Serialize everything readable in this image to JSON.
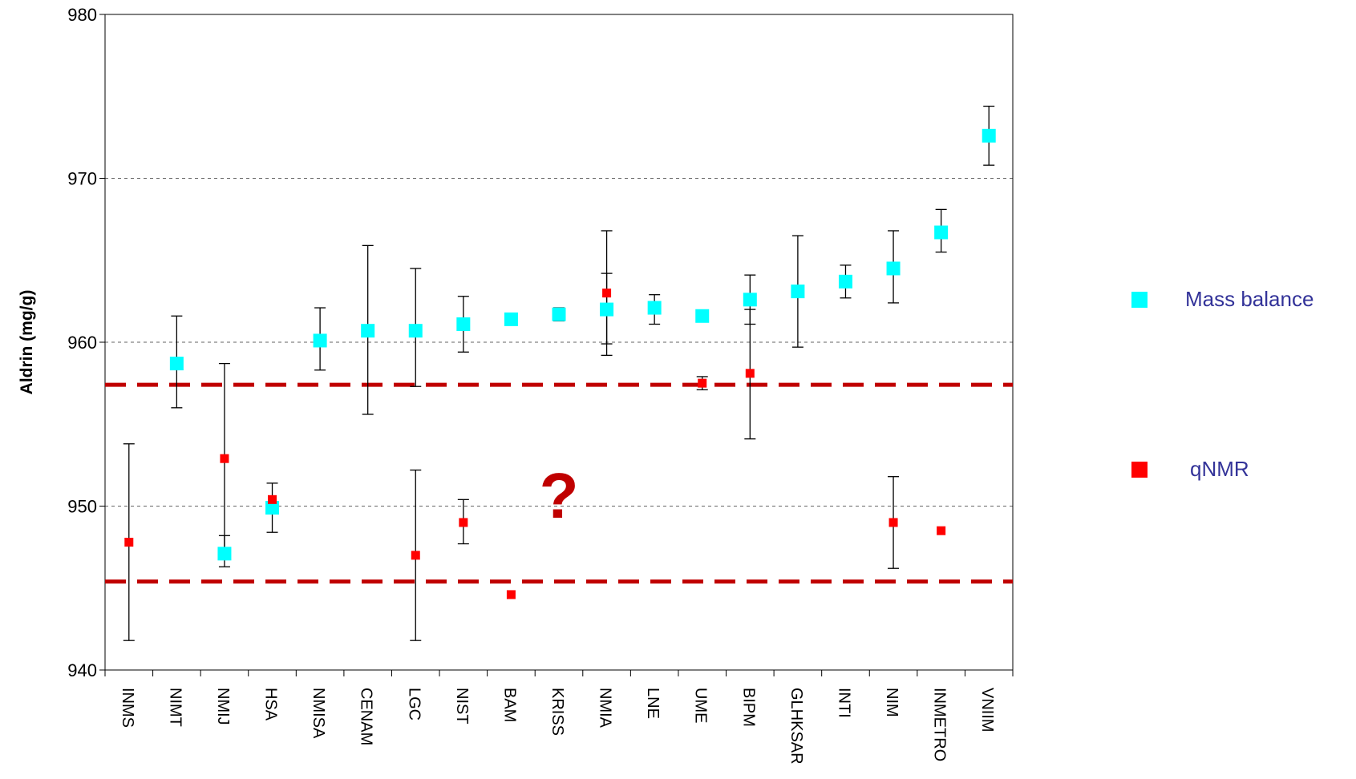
{
  "chart_data": {
    "type": "scatter",
    "title": "",
    "xlabel": "",
    "ylabel": "Aldrin (mg/g)",
    "ylim": [
      940,
      980
    ],
    "yticks": [
      940,
      950,
      960,
      970,
      980
    ],
    "grid": "horizontal dashed at 950, 960, 970",
    "legend_position": "right",
    "categories": [
      "INMS",
      "NIMT",
      "NMIJ",
      "HSA",
      "NMISA",
      "CENAM",
      "LGC",
      "NIST",
      "BAM",
      "KRISS",
      "NMIA",
      "LNE",
      "UME",
      "BIPM",
      "GLHKSAR",
      "INTI",
      "NIM",
      "INMETRO",
      "VNIIM"
    ],
    "series": [
      {
        "name": "Mass balance",
        "color": "#00ffff",
        "marker": "square",
        "points": [
          {
            "category": "NIMT",
            "y": 958.7,
            "low": 956.0,
            "high": 961.6
          },
          {
            "category": "NMIJ",
            "y": 947.1,
            "low": 946.3,
            "high": 948.2
          },
          {
            "category": "HSA",
            "y": 949.9,
            "low": 948.4,
            "high": 951.4
          },
          {
            "category": "NMISA",
            "y": 960.1,
            "low": 958.3,
            "high": 962.1
          },
          {
            "category": "CENAM",
            "y": 960.7,
            "low": 955.6,
            "high": 965.9
          },
          {
            "category": "LGC",
            "y": 960.7,
            "low": 957.3,
            "high": 964.5
          },
          {
            "category": "NIST",
            "y": 961.1,
            "low": 959.4,
            "high": 962.8
          },
          {
            "category": "BAM",
            "y": 961.4,
            "low": null,
            "high": null
          },
          {
            "category": "KRISS",
            "y": 961.7,
            "low": 961.3,
            "high": 962.1
          },
          {
            "category": "NMIA",
            "y": 962.0,
            "low": 959.9,
            "high": 964.2
          },
          {
            "category": "LNE",
            "y": 962.1,
            "low": 961.1,
            "high": 962.9
          },
          {
            "category": "UME",
            "y": 961.6,
            "low": null,
            "high": null
          },
          {
            "category": "BIPM",
            "y": 962.6,
            "low": 961.1,
            "high": 964.1
          },
          {
            "category": "GLHKSAR",
            "y": 963.1,
            "low": 959.7,
            "high": 966.5
          },
          {
            "category": "INTI",
            "y": 963.7,
            "low": 962.7,
            "high": 964.7
          },
          {
            "category": "NIM",
            "y": 964.5,
            "low": 962.4,
            "high": 966.8
          },
          {
            "category": "INMETRO",
            "y": 966.7,
            "low": 965.5,
            "high": 968.1
          },
          {
            "category": "VNIIM",
            "y": 972.6,
            "low": 970.8,
            "high": 974.4
          }
        ]
      },
      {
        "name": "qNMR",
        "color": "#ff0000",
        "marker": "square",
        "points": [
          {
            "category": "INMS",
            "y": 947.8,
            "low": 941.8,
            "high": 953.8
          },
          {
            "category": "NMIJ",
            "y": 952.9,
            "low": 947.1,
            "high": 958.7
          },
          {
            "category": "HSA",
            "y": 950.4,
            "low": null,
            "high": null
          },
          {
            "category": "LGC",
            "y": 947.0,
            "low": 941.8,
            "high": 952.2
          },
          {
            "category": "NIST",
            "y": 949.0,
            "low": 947.7,
            "high": 950.4
          },
          {
            "category": "BAM",
            "y": 944.6,
            "low": null,
            "high": null
          },
          {
            "category": "NMIA",
            "y": 963.0,
            "low": 959.2,
            "high": 966.8
          },
          {
            "category": "UME",
            "y": 957.5,
            "low": 957.1,
            "high": 957.9
          },
          {
            "category": "BIPM",
            "y": 958.1,
            "low": 954.1,
            "high": 962.0
          },
          {
            "category": "NIM",
            "y": 949.0,
            "low": 946.2,
            "high": 951.8
          },
          {
            "category": "INMETRO",
            "y": 948.5,
            "low": null,
            "high": null
          }
        ]
      }
    ],
    "reference_lines": [
      {
        "y": 957.4,
        "color": "#c00000",
        "style": "dashed"
      },
      {
        "y": 945.4,
        "color": "#c00000",
        "style": "dashed"
      }
    ],
    "annotations": [
      {
        "text": "?",
        "category": "KRISS",
        "y": 951.0,
        "color": "#c00000"
      }
    ]
  }
}
